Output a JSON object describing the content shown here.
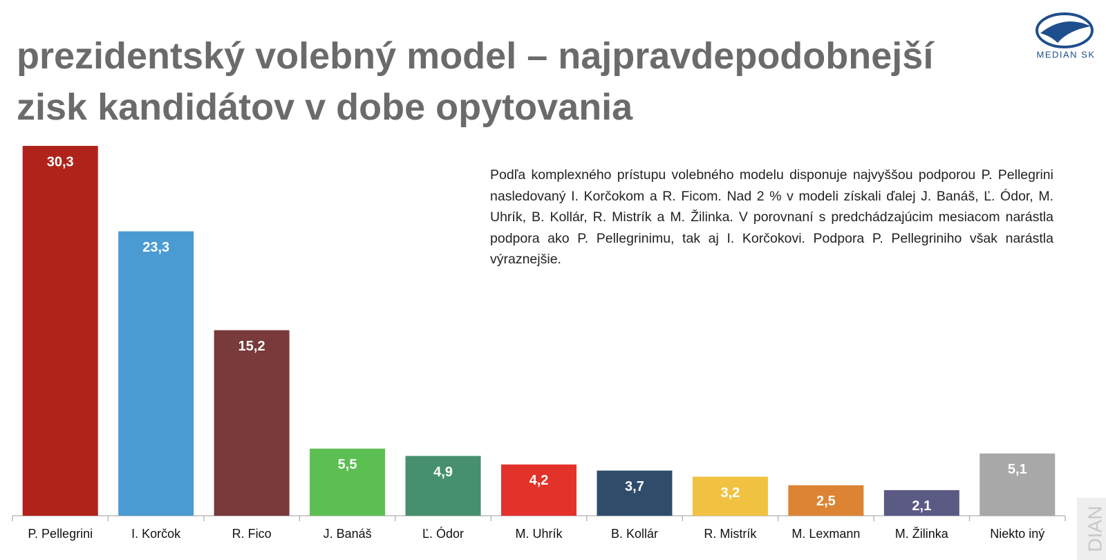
{
  "chart_data": {
    "type": "bar",
    "title": "prezidentský volebný model – najpravdepodobnejší zisk kandidátov v dobe opytovania",
    "description": "Podľa komplexného prístupu volebného modelu disponuje najvyššou podporou P. Pellegrini nasledovaný I. Korčokom a R. Ficom. Nad 2 % v modeli získali ďalej J. Banáš, Ľ. Ódor, M. Uhrík, B. Kollár, R. Mistrík a M. Žilinka. V porovnaní s predchádzajúcim mesiacom narástla podpora ako P. Pellegrinimu, tak aj I. Korčokovi. Podpora P. Pellegriniho však narástla výraznejšie.",
    "logo": "MEDIAN SK",
    "watermark": "DIAN",
    "categories": [
      "P. Pellegrini",
      "I. Korčok",
      "R. Fico",
      "J. Banáš",
      "Ľ. Ódor",
      "M. Uhrík",
      "B. Kollár",
      "R. Mistrík",
      "M. Lexmann",
      "M. Žilinka",
      "Niekto iný"
    ],
    "values": [
      30.3,
      23.3,
      15.2,
      5.5,
      4.9,
      4.2,
      3.7,
      3.2,
      2.5,
      2.1,
      5.1
    ],
    "value_labels": [
      "30,3",
      "23,3",
      "15,2",
      "5,5",
      "4,9",
      "4,2",
      "3,7",
      "3,2",
      "2,5",
      "2,1",
      "5,1"
    ],
    "colors": [
      "#b0231b",
      "#4a9bd1",
      "#783a3a",
      "#5cbf52",
      "#46906e",
      "#e2322a",
      "#2f4d6b",
      "#f1c242",
      "#dc8434",
      "#5b5a85",
      "#a8a8a8"
    ]
  }
}
